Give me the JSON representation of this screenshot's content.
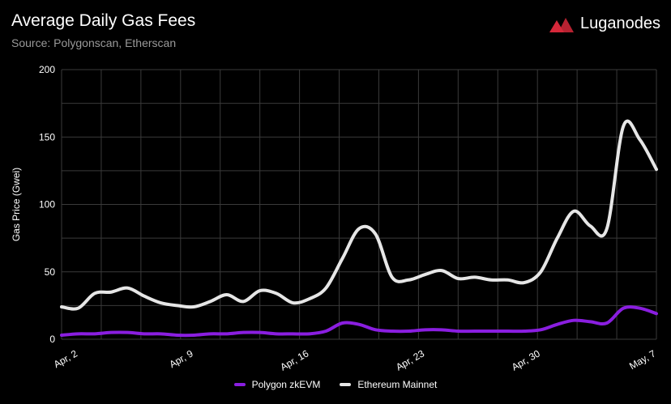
{
  "header": {
    "title": "Average Daily Gas Fees",
    "subtitle": "Source: Polygonscan, Etherscan"
  },
  "brand": {
    "name": "Luganodes",
    "logo_icon": "luganodes-logo-icon",
    "logo_color": "#d6283a"
  },
  "chart_data": {
    "type": "line",
    "title": "Average Daily Gas Fees",
    "subtitle": "Source: Polygonscan, Etherscan",
    "xlabel": "",
    "ylabel": "Gas Price (Gwei)",
    "ylim": [
      0,
      200
    ],
    "yticks": [
      0,
      50,
      100,
      150,
      200
    ],
    "x": [
      "2024-04-01",
      "2024-04-02",
      "2024-04-03",
      "2024-04-04",
      "2024-04-05",
      "2024-04-06",
      "2024-04-07",
      "2024-04-08",
      "2024-04-09",
      "2024-04-10",
      "2024-04-11",
      "2024-04-12",
      "2024-04-13",
      "2024-04-14",
      "2024-04-15",
      "2024-04-16",
      "2024-04-17",
      "2024-04-18",
      "2024-04-19",
      "2024-04-20",
      "2024-04-21",
      "2024-04-22",
      "2024-04-23",
      "2024-04-24",
      "2024-04-25",
      "2024-04-26",
      "2024-04-27",
      "2024-04-28",
      "2024-04-29",
      "2024-04-30",
      "2024-05-01",
      "2024-05-02",
      "2024-05-03",
      "2024-05-04",
      "2024-05-05",
      "2024-05-06",
      "2024-05-07"
    ],
    "xticks": [
      {
        "x": "2024-04-02",
        "label": "Apr, 2"
      },
      {
        "x": "2024-04-09",
        "label": "Apr, 9"
      },
      {
        "x": "2024-04-16",
        "label": "Apr, 16"
      },
      {
        "x": "2024-04-23",
        "label": "Apr, 23"
      },
      {
        "x": "2024-04-30",
        "label": "Apr, 30"
      },
      {
        "x": "2024-05-07",
        "label": "May, 7"
      }
    ],
    "grid": true,
    "legend_position": "bottom-center",
    "series": [
      {
        "name": "Polygon zkEVM",
        "color": "#8a1ee0",
        "values": [
          3,
          4,
          4,
          5,
          5,
          4,
          4,
          3,
          3,
          4,
          4,
          5,
          5,
          4,
          4,
          4,
          6,
          12,
          11,
          7,
          6,
          6,
          7,
          7,
          6,
          6,
          6,
          6,
          6,
          7,
          11,
          14,
          13,
          12,
          23,
          23,
          19
        ]
      },
      {
        "name": "Ethereum Mainnet",
        "color": "#e6e6e6",
        "values": [
          24,
          23,
          34,
          35,
          38,
          32,
          27,
          25,
          24,
          28,
          33,
          28,
          36,
          34,
          27,
          30,
          38,
          60,
          82,
          78,
          46,
          44,
          48,
          51,
          45,
          46,
          44,
          44,
          42,
          50,
          75,
          95,
          84,
          82,
          158,
          148,
          126
        ]
      }
    ]
  }
}
